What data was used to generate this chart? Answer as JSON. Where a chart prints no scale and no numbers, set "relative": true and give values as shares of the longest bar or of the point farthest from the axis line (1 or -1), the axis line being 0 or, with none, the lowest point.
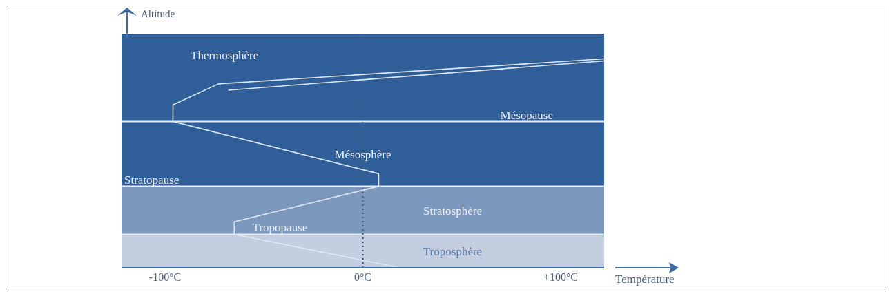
{
  "chart_data": {
    "type": "line",
    "relative": true,
    "xlabel": "Température",
    "ylabel": "Altitude",
    "xlim": [
      -122,
      122
    ],
    "xticks": [
      {
        "value": -100,
        "label": "-100°C"
      },
      {
        "value": 0,
        "label": "0°C"
      },
      {
        "value": 100,
        "label": "+100°C"
      }
    ],
    "series": [
      {
        "color": "#dde6f2",
        "x": [
          19,
          -65,
          -65,
          8,
          8,
          -96,
          -96,
          -73,
          122
        ],
        "values": [
          0,
          0.16,
          0.22,
          0.39,
          0.45,
          0.7,
          0.78,
          0.88,
          1
        ]
      },
      {
        "color": "#dde6f2",
        "x": [
          -68,
          122
        ],
        "values": [
          0.85,
          0.99
        ]
      }
    ],
    "bands": [
      {
        "axis": "y",
        "from": 0,
        "to": 0.16,
        "label": "Troposphère",
        "color": "#c3cfe0"
      },
      {
        "axis": "y",
        "from": 0.16,
        "to": 0.39,
        "label": "Stratosphère",
        "color": "#7d98bd"
      },
      {
        "axis": "y",
        "from": 0.39,
        "to": 0.7,
        "label": "Mésosphère",
        "color": "#2f5e98"
      },
      {
        "axis": "y",
        "from": 0.7,
        "to": 1.12,
        "label": "Thermosphère",
        "color": "#2f5e98"
      }
    ],
    "ref_lines": [
      {
        "axis": "y",
        "value": 0.16,
        "label": "Tropopause",
        "color": "#e8eef6"
      },
      {
        "axis": "y",
        "value": 0.39,
        "label": "Stratopause",
        "color": "#e8eef6"
      },
      {
        "axis": "y",
        "value": 0.7,
        "label": "Mésopause",
        "color": "#e8eef6"
      },
      {
        "axis": "x",
        "value": 0,
        "label": null,
        "color": "#4a6088",
        "line_style": "dotted"
      }
    ],
    "marker": "none",
    "line_style": "solid"
  }
}
